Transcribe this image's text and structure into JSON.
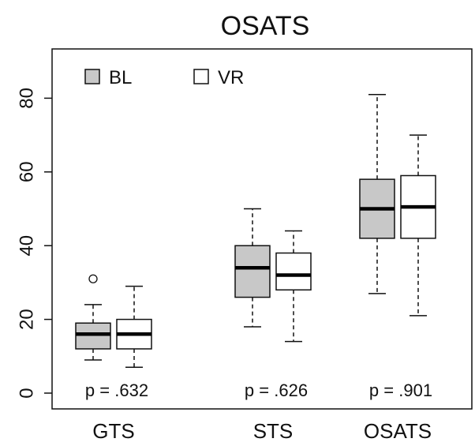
{
  "chart_data": {
    "type": "box",
    "title": "OSATS",
    "categories": [
      "GTS",
      "STS",
      "OSATS"
    ],
    "yticks": [
      0,
      20,
      40,
      60,
      80
    ],
    "ylim": [
      -4,
      93
    ],
    "legend_position": "top-left",
    "series": [
      {
        "name": "BL",
        "color": "#c8c8c8",
        "boxes": [
          {
            "whisker_low": 9,
            "q1": 12,
            "median": 16,
            "q3": 19,
            "whisker_high": 24,
            "outliers": [
              31
            ]
          },
          {
            "whisker_low": 18,
            "q1": 26,
            "median": 34,
            "q3": 40,
            "whisker_high": 50,
            "outliers": []
          },
          {
            "whisker_low": 27,
            "q1": 42,
            "median": 50,
            "q3": 58,
            "whisker_high": 81,
            "outliers": []
          }
        ]
      },
      {
        "name": "VR",
        "color": "#ffffff",
        "boxes": [
          {
            "whisker_low": 7,
            "q1": 12,
            "median": 16,
            "q3": 20,
            "whisker_high": 29,
            "outliers": []
          },
          {
            "whisker_low": 14,
            "q1": 28,
            "median": 32,
            "q3": 38,
            "whisker_high": 44,
            "outliers": []
          },
          {
            "whisker_low": 21,
            "q1": 42,
            "median": 50.5,
            "q3": 59,
            "whisker_high": 70,
            "outliers": []
          }
        ]
      }
    ],
    "annotations": [
      "p = .632",
      "p = .626",
      "p = .901"
    ]
  }
}
